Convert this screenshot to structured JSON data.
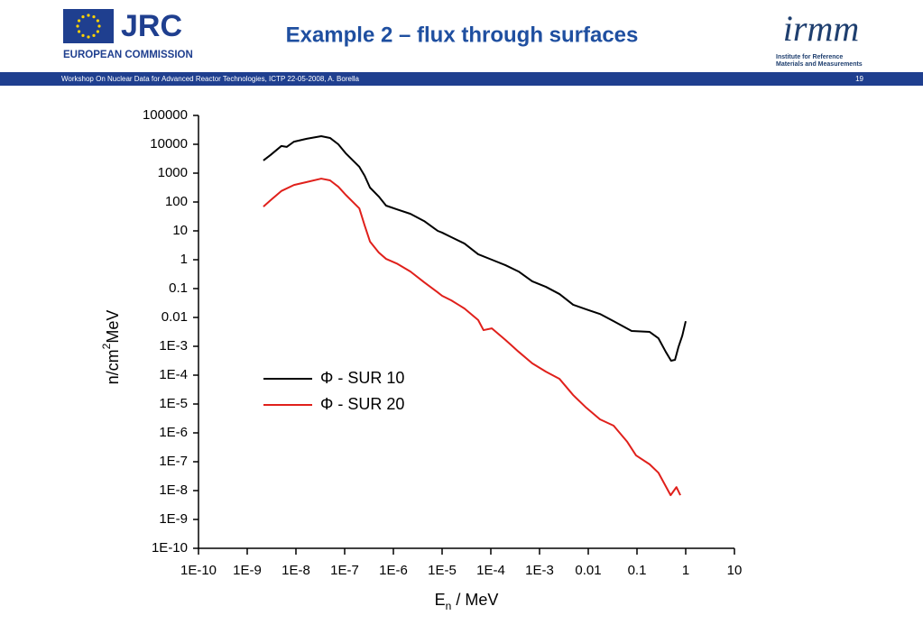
{
  "header": {
    "logo_text": "JRC",
    "org": "EUROPEAN COMMISSION",
    "irmm": "irmm",
    "institute": [
      "Institute for Reference",
      "Materials and Measurements"
    ]
  },
  "footer": {
    "text": "Workshop On Nuclear Data for Advanced Reactor Technologies, ICTP 22-05-2008, A. Borella",
    "page": "19"
  },
  "chart_data": {
    "type": "line",
    "title": "Example 2 – flux through surfaces",
    "y_label": {
      "main": "n/cm",
      "sup": "2",
      "rest": "MeV"
    },
    "x_label": {
      "main": "E",
      "sub": "n",
      "rest": " / MeV"
    },
    "log_x": true,
    "log_y": true,
    "xlim": [
      1e-10,
      10
    ],
    "ylim": [
      1e-10,
      100000
    ],
    "xticks": [
      {
        "value": 1e-10,
        "label": "1E-10"
      },
      {
        "value": 1e-09,
        "label": "1E-9"
      },
      {
        "value": 1e-08,
        "label": "1E-8"
      },
      {
        "value": 1e-07,
        "label": "1E-7"
      },
      {
        "value": 1e-06,
        "label": "1E-6"
      },
      {
        "value": 1e-05,
        "label": "1E-5"
      },
      {
        "value": 0.0001,
        "label": "1E-4"
      },
      {
        "value": 0.001,
        "label": "1E-3"
      },
      0.01,
      0.1,
      1,
      10
    ],
    "yticks": [
      {
        "value": 1e-10,
        "label": "1E-10"
      },
      {
        "value": 1e-09,
        "label": "1E-9"
      },
      {
        "value": 1e-08,
        "label": "1E-8"
      },
      {
        "value": 1e-07,
        "label": "1E-7"
      },
      {
        "value": 1e-06,
        "label": "1E-6"
      },
      {
        "value": 1e-05,
        "label": "1E-5"
      },
      {
        "value": 0.0001,
        "label": "1E-4"
      },
      {
        "value": 0.001,
        "label": "1E-3"
      },
      0.01,
      0.1,
      1,
      10,
      100,
      1000,
      10000,
      100000
    ],
    "series": [
      {
        "name": "Φ - SUR 10",
        "color": "#000000",
        "x": [
          2.15e-09,
          3.02e-09,
          5.01e-09,
          6.46e-09,
          9.12e-09,
          1.66e-08,
          3.31e-08,
          5.01e-08,
          7.41e-08,
          1.05e-07,
          2e-07,
          2.57e-07,
          3.31e-07,
          5.01e-07,
          7.08e-07,
          1.17e-06,
          2.24e-06,
          4.27e-06,
          8.13e-06,
          1e-05,
          1.55e-05,
          2.88e-05,
          5.5e-05,
          0.000105,
          0.0002,
          0.000372,
          0.000708,
          0.00135,
          0.00257,
          0.0049,
          0.00912,
          0.0174,
          0.0331,
          0.0776,
          0.182,
          0.275,
          0.389,
          0.501,
          0.603,
          0.708,
          0.851,
          1
        ],
        "values": [
          2750,
          4270,
          8710,
          8130,
          12300,
          15500,
          19100,
          16600,
          10000,
          4900,
          1660,
          813,
          316,
          155,
          75,
          56.2,
          38.9,
          21.9,
          10,
          8.71,
          6.03,
          3.63,
          1.55,
          1,
          0.646,
          0.389,
          0.178,
          0.115,
          0.0646,
          0.0275,
          0.0191,
          0.0132,
          0.00741,
          0.00339,
          0.00316,
          0.00191,
          0.000646,
          0.000316,
          0.000339,
          0.000933,
          0.00234,
          0.00741
        ]
      },
      {
        "name": "Φ - SUR 20",
        "color": "#e0201b",
        "x": [
          2.15e-09,
          3.02e-09,
          5.01e-09,
          9.12e-09,
          1.66e-08,
          3.31e-08,
          5.01e-08,
          7.41e-08,
          1.05e-07,
          2e-07,
          2.57e-07,
          3.31e-07,
          5.01e-07,
          7.08e-07,
          1.17e-06,
          2.24e-06,
          4.27e-06,
          8.13e-06,
          1e-05,
          1.55e-05,
          2.88e-05,
          5.5e-05,
          7.08e-05,
          0.000105,
          0.0002,
          0.000372,
          0.000708,
          0.00135,
          0.00257,
          0.0049,
          0.00912,
          0.0174,
          0.0331,
          0.0631,
          0.0955,
          0.182,
          0.275,
          0.49,
          0.646,
          0.776
        ],
        "values": [
          69.2,
          115,
          240,
          389,
          490,
          646,
          562,
          339,
          178,
          60.3,
          15.5,
          4.27,
          1.78,
          1.07,
          0.741,
          0.389,
          0.166,
          0.0741,
          0.0562,
          0.0389,
          0.0204,
          0.00813,
          0.00363,
          0.00417,
          0.00166,
          0.000646,
          0.000257,
          0.000132,
          7.41e-05,
          2.04e-05,
          7.41e-06,
          2.95e-06,
          1.78e-06,
          4.9e-07,
          1.66e-07,
          8.13e-08,
          4.17e-08,
          6.92e-09,
          1.32e-08,
          6.92e-09
        ]
      }
    ]
  }
}
